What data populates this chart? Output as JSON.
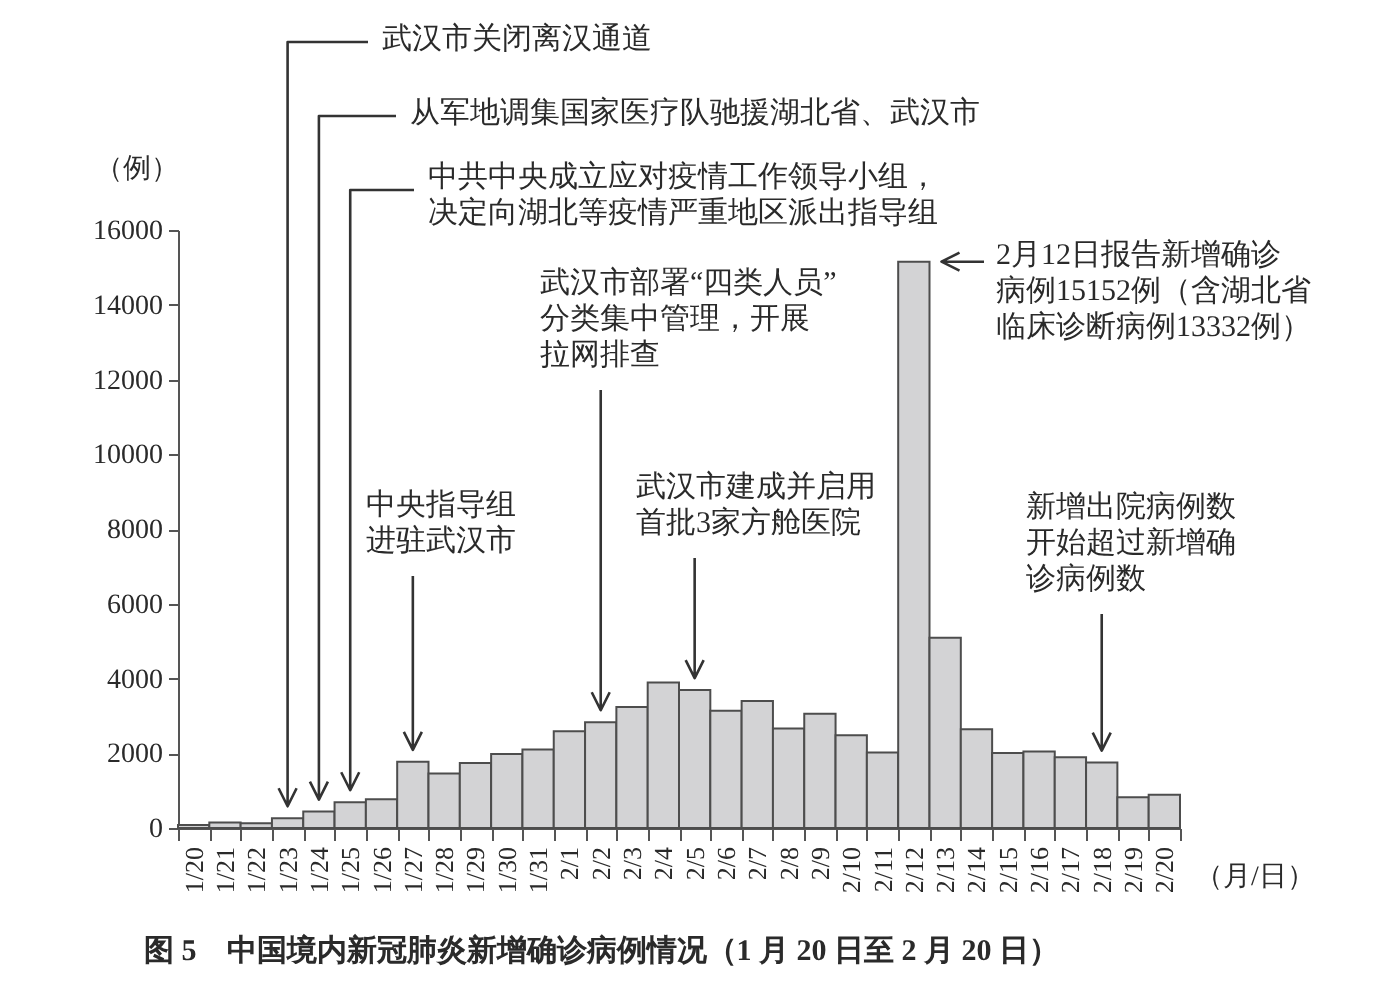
{
  "chart_data": {
    "type": "bar",
    "title": "图 5　中国境内新冠肺炎新增确诊病例情况（1 月 20 日至 2 月 20 日）",
    "xlabel": "（月/日）",
    "ylabel": "（例）",
    "categories": [
      "1/20",
      "1/21",
      "1/22",
      "1/23",
      "1/24",
      "1/25",
      "1/26",
      "1/27",
      "1/28",
      "1/29",
      "1/30",
      "1/31",
      "2/1",
      "2/2",
      "2/3",
      "2/4",
      "2/5",
      "2/6",
      "2/7",
      "2/8",
      "2/9",
      "2/10",
      "2/11",
      "2/12",
      "2/13",
      "2/14",
      "2/15",
      "2/16",
      "2/17",
      "2/18",
      "2/19",
      "2/20"
    ],
    "values": [
      80,
      150,
      130,
      260,
      440,
      690,
      770,
      1770,
      1460,
      1740,
      1980,
      2100,
      2590,
      2830,
      3240,
      3890,
      3690,
      3140,
      3400,
      2660,
      3060,
      2480,
      2020,
      15152,
      5090,
      2640,
      2010,
      2050,
      1890,
      1750,
      820,
      890
    ],
    "color": "#d3d3d5",
    "ylim": [
      0,
      16000
    ],
    "yticks": [
      0,
      2000,
      4000,
      6000,
      8000,
      10000,
      12000,
      14000,
      16000
    ],
    "annotations": [
      {
        "text": "武汉市关闭离汉通道",
        "x": "1/23",
        "y": 260
      },
      {
        "text": "从军地调集国家医疗队驰援湖北省、武汉市",
        "x": "1/24",
        "y": 440
      },
      {
        "text": "中共中央成立应对疫情工作领导小组，决定向湖北等疫情严重地区派出指导组",
        "x": "1/25",
        "y": 690
      },
      {
        "text": "武汉市部署“四类人员”分类集中管理，开展拉网排查",
        "x": "2/2",
        "y": 2830
      },
      {
        "text": "中央指导组进驻武汉市",
        "x": "1/27",
        "y": 1770
      },
      {
        "text": "武汉市建成并启用首批3家方舱医院",
        "x": "2/5",
        "y": 3690
      },
      {
        "text": "2月12日报告新增确诊病例15152例（含湖北省临床诊断病例13332例）",
        "x": "2/12",
        "y": 15152
      },
      {
        "text": "新增出院病例数开始超过新增确诊病例数",
        "x": "2/18",
        "y": 1750
      }
    ]
  }
}
